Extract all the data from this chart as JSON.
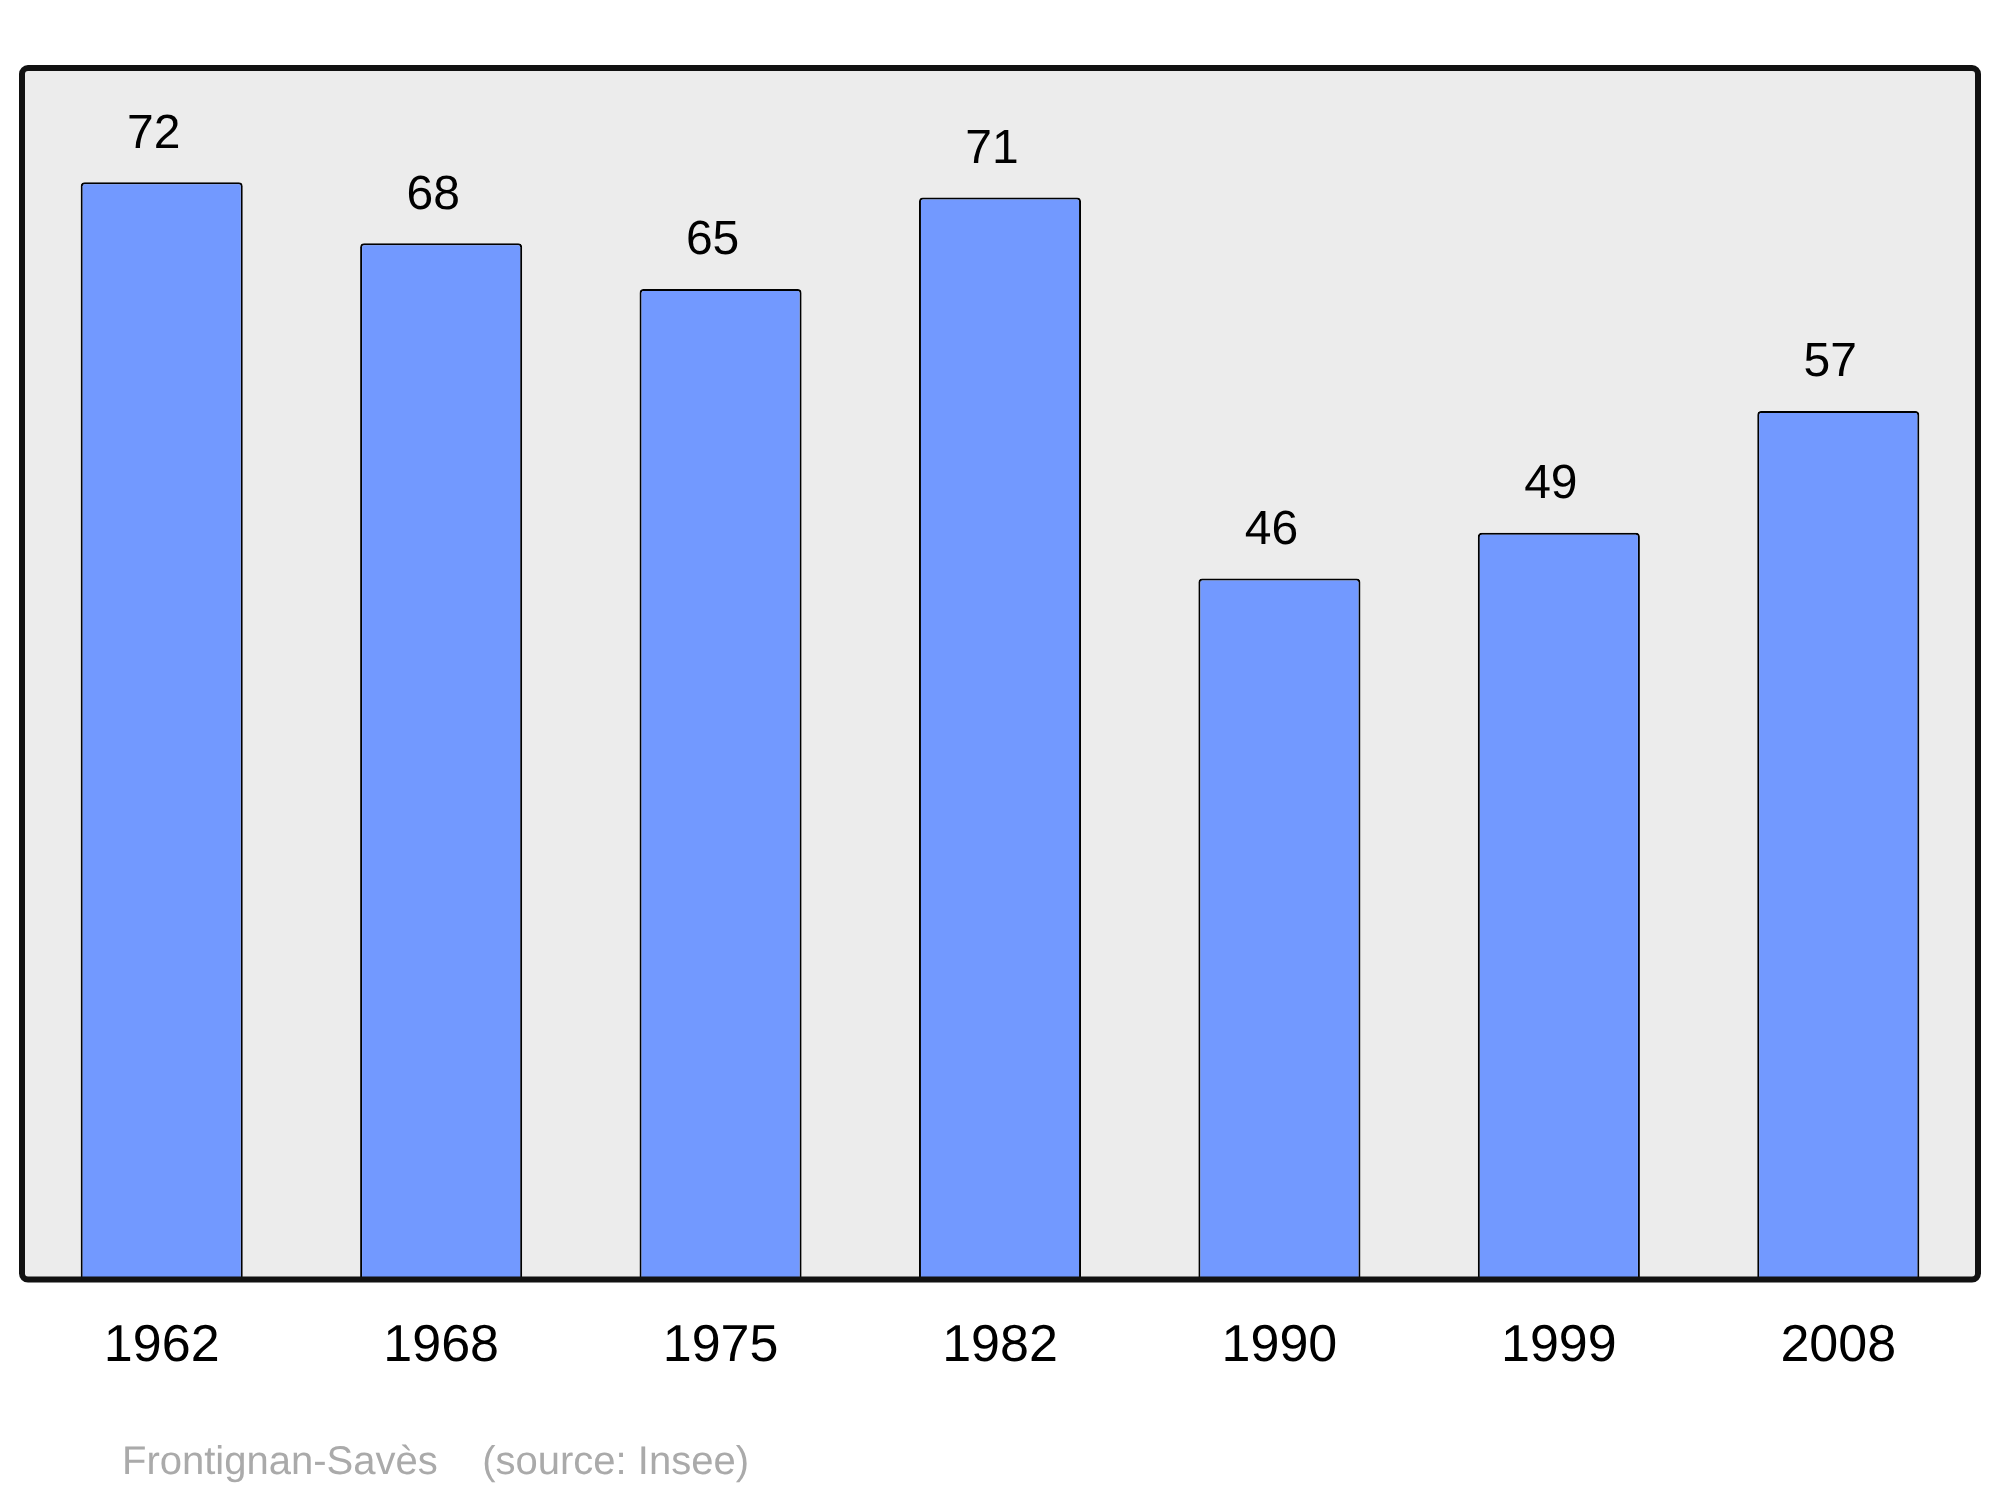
{
  "chart_data": {
    "type": "bar",
    "categories": [
      "1962",
      "1968",
      "1975",
      "1982",
      "1990",
      "1999",
      "2008"
    ],
    "values": [
      72,
      68,
      65,
      71,
      46,
      49,
      57
    ],
    "color": "#7299ff",
    "ylim": [
      0,
      79.5
    ],
    "data_labels": true,
    "grid": false,
    "legend": false,
    "tick_labels": "x",
    "annotations": [
      "Frontignan-Savès    (source: Insee)"
    ]
  }
}
